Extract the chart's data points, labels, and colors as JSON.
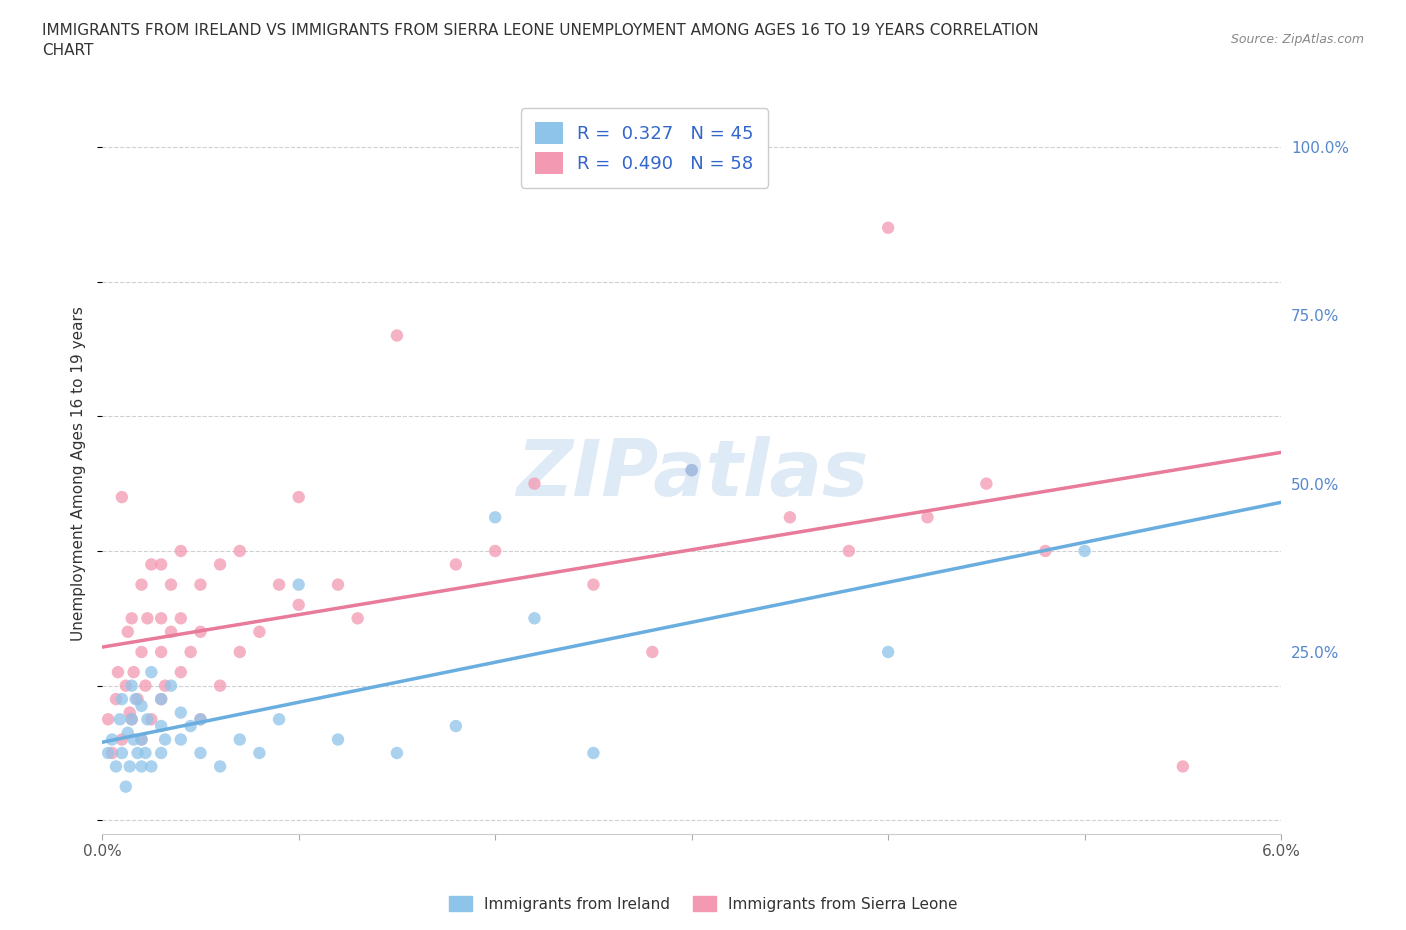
{
  "title": "IMMIGRANTS FROM IRELAND VS IMMIGRANTS FROM SIERRA LEONE UNEMPLOYMENT AMONG AGES 16 TO 19 YEARS CORRELATION\nCHART",
  "source": "Source: ZipAtlas.com",
  "ylabel": "Unemployment Among Ages 16 to 19 years",
  "xlim": [
    0.0,
    0.06
  ],
  "ylim": [
    -0.02,
    1.05
  ],
  "xticks": [
    0.0,
    0.01,
    0.02,
    0.03,
    0.04,
    0.05,
    0.06
  ],
  "xticklabels": [
    "0.0%",
    "",
    "",
    "",
    "",
    "",
    "6.0%"
  ],
  "yticks": [
    0.0,
    0.25,
    0.5,
    0.75,
    1.0
  ],
  "yticklabels": [
    "",
    "25.0%",
    "50.0%",
    "75.0%",
    "100.0%"
  ],
  "ireland_scatter_color": "#8ec4ea",
  "sierra_leone_scatter_color": "#f499b2",
  "trend_ireland_color": "#6aaee0",
  "trend_sierra_leone_color": "#e87a9a",
  "R_ireland": 0.327,
  "N_ireland": 45,
  "R_sierra_leone": 0.49,
  "N_sierra_leone": 58,
  "watermark": "ZIPatlas",
  "background_color": "#ffffff",
  "grid_color": "#d0d0d0",
  "legend_text_color": "#3366cc",
  "ireland_points_x": [
    0.0003,
    0.0005,
    0.0007,
    0.0009,
    0.001,
    0.001,
    0.0012,
    0.0013,
    0.0014,
    0.0015,
    0.0015,
    0.0016,
    0.0017,
    0.0018,
    0.002,
    0.002,
    0.002,
    0.0022,
    0.0023,
    0.0025,
    0.0025,
    0.003,
    0.003,
    0.003,
    0.0032,
    0.0035,
    0.004,
    0.004,
    0.0045,
    0.005,
    0.005,
    0.006,
    0.007,
    0.008,
    0.009,
    0.01,
    0.012,
    0.015,
    0.018,
    0.02,
    0.022,
    0.025,
    0.03,
    0.04,
    0.05
  ],
  "ireland_points_y": [
    0.1,
    0.12,
    0.08,
    0.15,
    0.1,
    0.18,
    0.05,
    0.13,
    0.08,
    0.15,
    0.2,
    0.12,
    0.18,
    0.1,
    0.08,
    0.12,
    0.17,
    0.1,
    0.15,
    0.22,
    0.08,
    0.1,
    0.14,
    0.18,
    0.12,
    0.2,
    0.12,
    0.16,
    0.14,
    0.1,
    0.15,
    0.08,
    0.12,
    0.1,
    0.15,
    0.35,
    0.12,
    0.1,
    0.14,
    0.45,
    0.3,
    0.1,
    0.52,
    0.25,
    0.4
  ],
  "sierra_leone_points_x": [
    0.0003,
    0.0005,
    0.0007,
    0.0008,
    0.001,
    0.001,
    0.0012,
    0.0013,
    0.0014,
    0.0015,
    0.0015,
    0.0016,
    0.0018,
    0.002,
    0.002,
    0.002,
    0.0022,
    0.0023,
    0.0025,
    0.0025,
    0.003,
    0.003,
    0.003,
    0.003,
    0.0032,
    0.0035,
    0.0035,
    0.004,
    0.004,
    0.004,
    0.0045,
    0.005,
    0.005,
    0.005,
    0.006,
    0.006,
    0.007,
    0.007,
    0.008,
    0.009,
    0.01,
    0.01,
    0.012,
    0.013,
    0.015,
    0.018,
    0.02,
    0.022,
    0.025,
    0.028,
    0.03,
    0.035,
    0.038,
    0.04,
    0.042,
    0.045,
    0.048,
    0.055
  ],
  "sierra_leone_points_y": [
    0.15,
    0.1,
    0.18,
    0.22,
    0.12,
    0.48,
    0.2,
    0.28,
    0.16,
    0.15,
    0.3,
    0.22,
    0.18,
    0.12,
    0.25,
    0.35,
    0.2,
    0.3,
    0.15,
    0.38,
    0.18,
    0.25,
    0.3,
    0.38,
    0.2,
    0.28,
    0.35,
    0.22,
    0.3,
    0.4,
    0.25,
    0.15,
    0.28,
    0.35,
    0.2,
    0.38,
    0.25,
    0.4,
    0.28,
    0.35,
    0.32,
    0.48,
    0.35,
    0.3,
    0.72,
    0.38,
    0.4,
    0.5,
    0.35,
    0.25,
    0.52,
    0.45,
    0.4,
    0.88,
    0.45,
    0.5,
    0.4,
    0.08
  ]
}
